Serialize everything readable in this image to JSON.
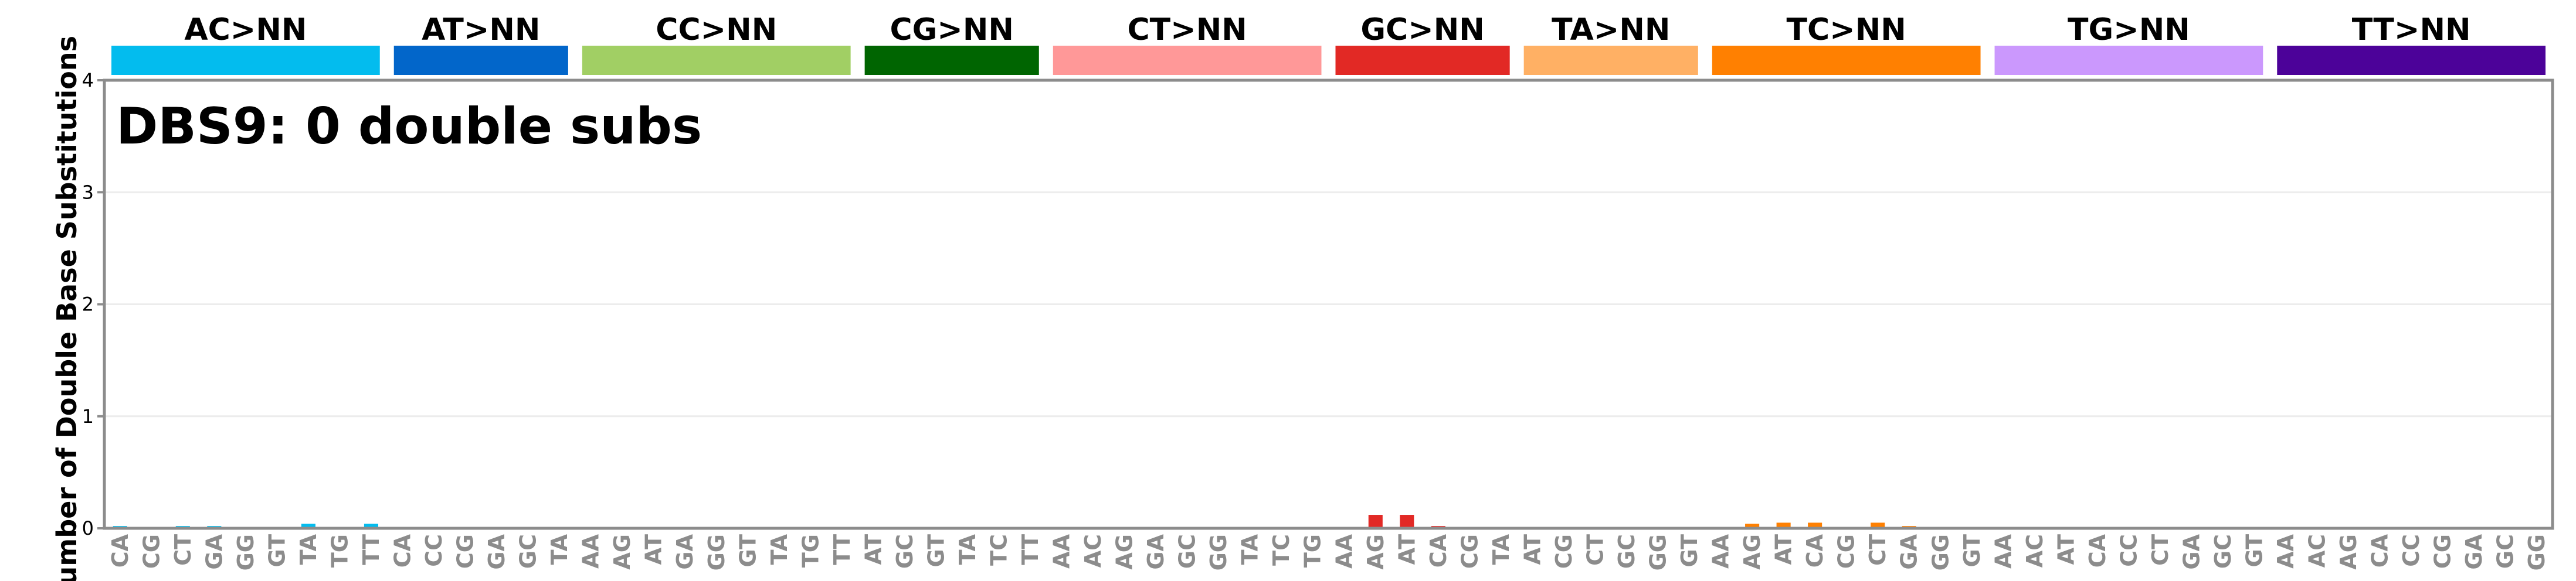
{
  "chart_data": {
    "type": "bar",
    "title": "DBS9: 0 double subs",
    "ylabel": "Number of Double Base Substitutions",
    "ylim": [
      0,
      4
    ],
    "yticks": [
      0,
      1,
      2,
      3,
      4
    ],
    "grid": true,
    "groups": [
      {
        "name": "AC>NN",
        "color": "#03BCEE",
        "categories": [
          "CA",
          "CG",
          "CT",
          "GA",
          "GG",
          "GT",
          "TA",
          "TG",
          "TT"
        ],
        "values": [
          0.02,
          0,
          0.02,
          0.02,
          0,
          0,
          0.04,
          0,
          0.04
        ]
      },
      {
        "name": "AT>NN",
        "color": "#0266CA",
        "categories": [
          "CA",
          "CC",
          "CG",
          "GA",
          "GC",
          "TA"
        ],
        "values": [
          0.01,
          0,
          0,
          0,
          0,
          0
        ]
      },
      {
        "name": "CC>NN",
        "color": "#A1CF64",
        "categories": [
          "AA",
          "AG",
          "AT",
          "GA",
          "GG",
          "GT",
          "TA",
          "TG",
          "TT"
        ],
        "values": [
          0,
          0.01,
          0.01,
          0,
          0,
          0.01,
          0,
          0.01,
          0
        ]
      },
      {
        "name": "CG>NN",
        "color": "#006501",
        "categories": [
          "AT",
          "GC",
          "GT",
          "TA",
          "TC",
          "TT"
        ],
        "values": [
          0,
          0,
          0,
          0,
          0,
          0
        ]
      },
      {
        "name": "CT>NN",
        "color": "#FF9898",
        "categories": [
          "AA",
          "AC",
          "AG",
          "GA",
          "GC",
          "GG",
          "TA",
          "TC",
          "TG"
        ],
        "values": [
          0,
          0,
          0,
          0,
          0,
          0,
          0,
          0,
          0
        ]
      },
      {
        "name": "GC>NN",
        "color": "#E22925",
        "categories": [
          "AA",
          "AG",
          "AT",
          "CA",
          "CG",
          "TA"
        ],
        "values": [
          0,
          0.12,
          0.12,
          0.02,
          0,
          0
        ]
      },
      {
        "name": "TA>NN",
        "color": "#FFB064",
        "categories": [
          "AT",
          "CG",
          "CT",
          "GC",
          "GG",
          "GT"
        ],
        "values": [
          0,
          0,
          0.01,
          0,
          0,
          0.01
        ]
      },
      {
        "name": "TC>NN",
        "color": "#FF8001",
        "categories": [
          "AA",
          "AG",
          "AT",
          "CA",
          "CG",
          "CT",
          "GA",
          "GG",
          "GT"
        ],
        "values": [
          0,
          0.04,
          0.05,
          0.05,
          0,
          0.05,
          0.02,
          0,
          0
        ]
      },
      {
        "name": "TG>NN",
        "color": "#CB98FD",
        "categories": [
          "AA",
          "AC",
          "AT",
          "CA",
          "CC",
          "CT",
          "GA",
          "GC",
          "GT"
        ],
        "values": [
          0,
          0,
          0,
          0.01,
          0,
          0,
          0,
          0,
          0
        ]
      },
      {
        "name": "TT>NN",
        "color": "#4C0299",
        "categories": [
          "AA",
          "AC",
          "AG",
          "CA",
          "CC",
          "CG",
          "GA",
          "GC",
          "GG"
        ],
        "values": [
          0,
          0.01,
          0,
          0,
          0,
          0,
          0,
          0,
          0
        ]
      }
    ]
  }
}
